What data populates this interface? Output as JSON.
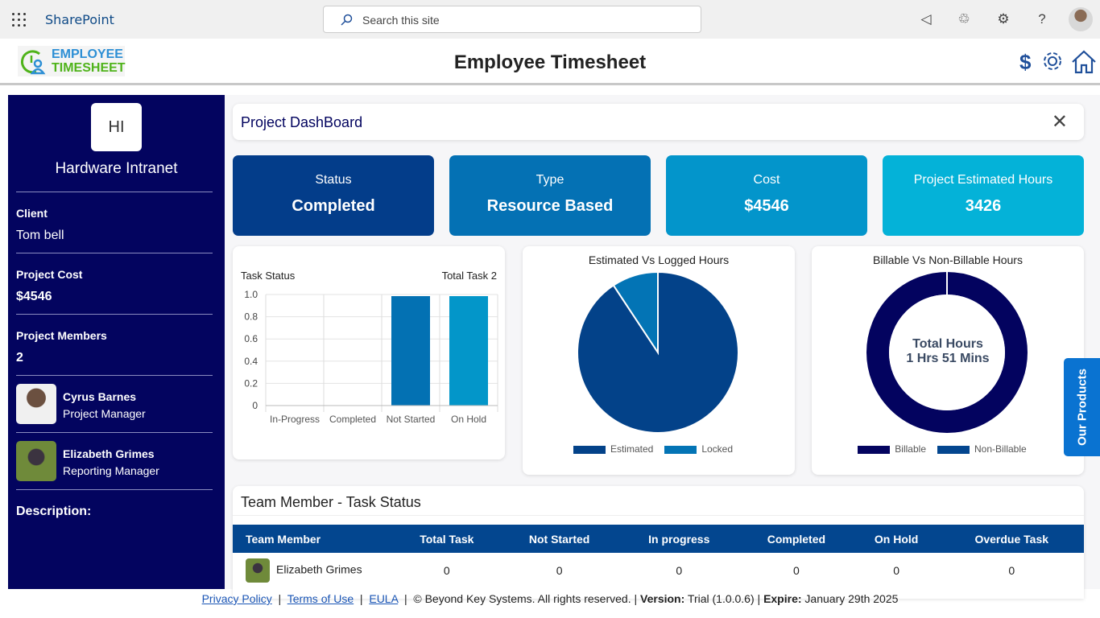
{
  "topbar": {
    "app_name": "SharePoint",
    "search_placeholder": "Search this site"
  },
  "header": {
    "logo_line1": "EMPLOYEE",
    "logo_line2": "TIMESHEET",
    "title": "Employee Timesheet"
  },
  "sidebar": {
    "initials": "HI",
    "site_name": "Hardware Intranet",
    "client_label": "Client",
    "client": "Tom bell",
    "cost_label": "Project Cost",
    "cost": "$4546",
    "members_label": "Project Members",
    "members_count": "2",
    "members": [
      {
        "name": "Cyrus Barnes",
        "role": "Project Manager"
      },
      {
        "name": "Elizabeth Grimes",
        "role": "Reporting Manager"
      }
    ],
    "description_label": "Description:"
  },
  "dashboard": {
    "title": "Project DashBoard",
    "close": "✕"
  },
  "kpis": [
    {
      "label": "Status",
      "value": "Completed",
      "color": "#033d8a"
    },
    {
      "label": "Type",
      "value": "Resource Based",
      "color": "#0471b4"
    },
    {
      "label": "Cost",
      "value": "$4546",
      "color": "#0395cb"
    },
    {
      "label": "Project Estimated Hours",
      "value": "3426",
      "color": "#04b2d8"
    }
  ],
  "chart_data": [
    {
      "type": "bar",
      "title": "Task Status",
      "subtitle": "Total Task 2",
      "categories": [
        "In-Progress",
        "Completed",
        "Not Started",
        "On Hold"
      ],
      "values": [
        0,
        0,
        1,
        1
      ],
      "colors": [
        "#0371b3",
        "#0371b3",
        "#0371b3",
        "#0396c9"
      ],
      "ylim": [
        0,
        1
      ],
      "yticks": [
        "0",
        "0.2",
        "0.4",
        "0.6",
        "0.8",
        "1.0"
      ],
      "grid": true
    },
    {
      "type": "pie",
      "title": "Estimated Vs Logged Hours",
      "series": [
        {
          "name": "Estimated",
          "value": 90.7,
          "color": "#034289"
        },
        {
          "name": "Locked",
          "value": 9.3,
          "color": "#0374b5"
        }
      ],
      "legend": "bottom"
    },
    {
      "type": "pie",
      "title": "Billable Vs Non-Billable Hours",
      "center_label": [
        "Total Hours",
        "1 Hrs 51 Mins"
      ],
      "series": [
        {
          "name": "Billable",
          "value": 100,
          "color": "#03035f"
        },
        {
          "name": "Non-Billable",
          "value": 0,
          "color": "#03468f"
        }
      ],
      "legend": "bottom"
    }
  ],
  "team": {
    "title": "Team Member - Task Status",
    "columns": [
      "Team Member",
      "Total Task",
      "Not Started",
      "In progress",
      "Completed",
      "On Hold",
      "Overdue Task"
    ],
    "rows": [
      {
        "name": "Elizabeth Grimes",
        "values": [
          "0",
          "0",
          "0",
          "0",
          "0",
          "0"
        ]
      }
    ]
  },
  "our_products": "Our Products",
  "footer": {
    "privacy": "Privacy Policy",
    "terms": "Terms of Use",
    "eula": "EULA",
    "copyright": "© Beyond Key Systems. All rights reserved.",
    "version_label": "Version:",
    "version": "Trial (1.0.0.6)",
    "expire_label": "Expire:",
    "expire": "January 29th 2025"
  }
}
